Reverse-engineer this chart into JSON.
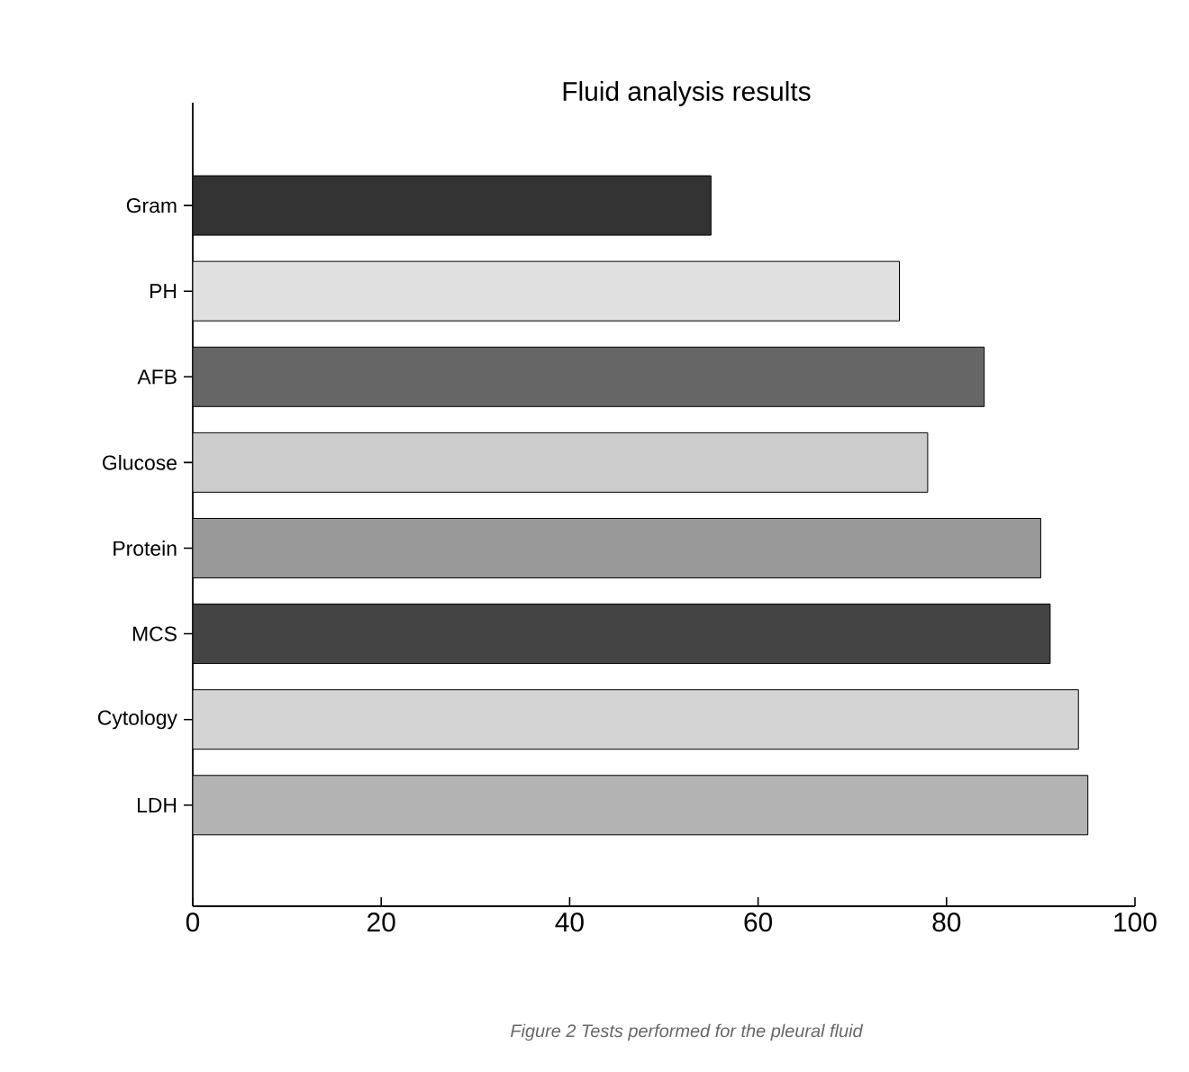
{
  "chart_data": {
    "type": "bar",
    "orientation": "horizontal",
    "title": "Fluid analysis results",
    "categories": [
      "Gram",
      "PH",
      "AFB",
      "Glucose",
      "Protein",
      "MCS",
      "Cytology",
      "LDH"
    ],
    "values": [
      55,
      75,
      84,
      78,
      90,
      91,
      94,
      95
    ],
    "colors": [
      "#333333",
      "#e0e0e0",
      "#666666",
      "#cccccc",
      "#999999",
      "#444444",
      "#d4d4d4",
      "#b3b3b3"
    ],
    "xlim": [
      0,
      100
    ],
    "xticks": [
      0,
      20,
      40,
      60,
      80,
      100
    ],
    "annotations": [
      "Figure 2 Tests performed for the pleural fluid"
    ]
  }
}
